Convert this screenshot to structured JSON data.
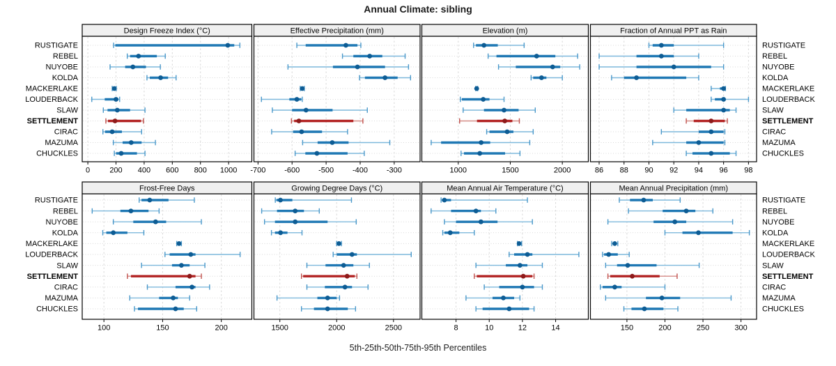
{
  "title": "Annual Climate: sibling",
  "caption": "5th-25th-50th-75th-95th Percentiles",
  "highlight_site": "SETTLEMENT",
  "sites": [
    "RUSTIGATE",
    "REBEL",
    "NUYOBE",
    "KOLDA",
    "MACKERLAKE",
    "LOUDERBACK",
    "SLAW",
    "SETTLEMENT",
    "CIRAC",
    "MAZUMA",
    "CHUCKLES"
  ],
  "colors": {
    "site_line": "#7db8dc",
    "site_cap": "#4897c9",
    "site_bar": "#1f78b4",
    "site_dot": "#0d5c94",
    "highlight_line": "#d48a86",
    "highlight_cap": "#c0504c",
    "highlight_bar": "#b22222",
    "highlight_dot": "#8e1a1a",
    "grid": "#d8d8d8",
    "strip_bg": "#f0f0f0",
    "border": "#000000",
    "text": "#000000"
  },
  "chart_data": [
    {
      "type": "dot-whisker",
      "title": "Design Freeze Index (°C)",
      "xlim": [
        -40,
        1165
      ],
      "xticks": [
        0,
        200,
        400,
        600,
        800,
        1000
      ],
      "percentile_order": [
        "5th",
        "25th",
        "50th",
        "75th",
        "95th"
      ],
      "series": [
        {
          "name": "RUSTIGATE",
          "percentiles": [
            183,
            195,
            994,
            1040,
            1080
          ]
        },
        {
          "name": "REBEL",
          "percentiles": [
            280,
            300,
            360,
            490,
            550
          ]
        },
        {
          "name": "NUYOBE",
          "percentiles": [
            158,
            265,
            320,
            413,
            515
          ]
        },
        {
          "name": "KOLDA",
          "percentiles": [
            420,
            440,
            517,
            570,
            627
          ]
        },
        {
          "name": "MACKERLAKE",
          "percentiles": [
            173,
            180,
            188,
            196,
            202
          ]
        },
        {
          "name": "LOUDERBACK",
          "percentiles": [
            28,
            120,
            200,
            217,
            226
          ]
        },
        {
          "name": "SLAW",
          "percentiles": [
            110,
            140,
            209,
            300,
            406
          ]
        },
        {
          "name": "SETTLEMENT",
          "percentiles": [
            128,
            143,
            193,
            378,
            395
          ]
        },
        {
          "name": "CIRAC",
          "percentiles": [
            107,
            122,
            173,
            242,
            382
          ]
        },
        {
          "name": "MAZUMA",
          "percentiles": [
            181,
            247,
            308,
            382,
            480
          ]
        },
        {
          "name": "CHUCKLES",
          "percentiles": [
            188,
            201,
            237,
            349,
            406
          ]
        }
      ]
    },
    {
      "type": "dot-whisker",
      "title": "Effective Precipitation (mm)",
      "xlim": [
        -712,
        -224
      ],
      "xticks": [
        -700,
        -600,
        -500,
        -400,
        -300
      ],
      "series": [
        {
          "name": "RUSTIGATE",
          "percentiles": [
            -586,
            -560,
            -442,
            -408,
            -398
          ]
        },
        {
          "name": "REBEL",
          "percentiles": [
            -452,
            -420,
            -372,
            -335,
            -268
          ]
        },
        {
          "name": "NUYOBE",
          "percentiles": [
            -612,
            -480,
            -408,
            -327,
            -258
          ]
        },
        {
          "name": "KOLDA",
          "percentiles": [
            -402,
            -386,
            -327,
            -290,
            -252
          ]
        },
        {
          "name": "MACKERLAKE",
          "percentiles": [
            -576,
            -573,
            -570,
            -567,
            -564
          ]
        },
        {
          "name": "LOUDERBACK",
          "percentiles": [
            -690,
            -608,
            -586,
            -573,
            -570
          ]
        },
        {
          "name": "SLAW",
          "percentiles": [
            -658,
            -600,
            -559,
            -481,
            -379
          ]
        },
        {
          "name": "SETTLEMENT",
          "percentiles": [
            -602,
            -594,
            -580,
            -420,
            -392
          ]
        },
        {
          "name": "CIRAC",
          "percentiles": [
            -660,
            -597,
            -572,
            -512,
            -437
          ]
        },
        {
          "name": "MAZUMA",
          "percentiles": [
            -569,
            -525,
            -482,
            -434,
            -313
          ]
        },
        {
          "name": "CHUCKLES",
          "percentiles": [
            -591,
            -561,
            -527,
            -437,
            -388
          ]
        }
      ]
    },
    {
      "type": "dot-whisker",
      "title": "Elevation (m)",
      "xlim": [
        650,
        2250
      ],
      "xticks": [
        1000,
        1500,
        2000
      ],
      "series": [
        {
          "name": "RUSTIGATE",
          "percentiles": [
            1147,
            1170,
            1247,
            1380,
            1633
          ]
        },
        {
          "name": "REBEL",
          "percentiles": [
            1287,
            1367,
            1753,
            1933,
            2147
          ]
        },
        {
          "name": "NUYOBE",
          "percentiles": [
            1387,
            1553,
            1907,
            1980,
            2167
          ]
        },
        {
          "name": "KOLDA",
          "percentiles": [
            1700,
            1720,
            1800,
            1847,
            2000
          ]
        },
        {
          "name": "MACKERLAKE",
          "percentiles": [
            1168,
            1173,
            1177,
            1182,
            1187
          ]
        },
        {
          "name": "LOUDERBACK",
          "percentiles": [
            1020,
            1035,
            1240,
            1300,
            1440
          ]
        },
        {
          "name": "SLAW",
          "percentiles": [
            1047,
            1247,
            1440,
            1580,
            1740
          ]
        },
        {
          "name": "SETTLEMENT",
          "percentiles": [
            1013,
            1180,
            1447,
            1520,
            1587
          ]
        },
        {
          "name": "CIRAC",
          "percentiles": [
            1273,
            1300,
            1470,
            1530,
            1720
          ]
        },
        {
          "name": "MAZUMA",
          "percentiles": [
            740,
            835,
            1220,
            1307,
            1687
          ]
        },
        {
          "name": "CHUCKLES",
          "percentiles": [
            1027,
            1055,
            1207,
            1450,
            1593
          ]
        }
      ]
    },
    {
      "type": "dot-whisker",
      "title": "Fraction of Annual PPT as Rain",
      "xlim": [
        85.3,
        98.65
      ],
      "xticks": [
        86,
        88,
        90,
        92,
        94,
        96,
        98
      ],
      "series": [
        {
          "name": "RUSTIGATE",
          "percentiles": [
            90,
            90.3,
            91,
            92,
            96
          ]
        },
        {
          "name": "REBEL",
          "percentiles": [
            86,
            89,
            91,
            92,
            94
          ]
        },
        {
          "name": "NUYOBE",
          "percentiles": [
            86,
            89,
            92,
            95,
            96
          ]
        },
        {
          "name": "KOLDA",
          "percentiles": [
            87,
            88,
            89,
            93,
            94
          ]
        },
        {
          "name": "MACKERLAKE",
          "percentiles": [
            95,
            95.7,
            96,
            96.08,
            96.15
          ]
        },
        {
          "name": "LOUDERBACK",
          "percentiles": [
            95,
            95.3,
            96,
            96.1,
            98
          ]
        },
        {
          "name": "SLAW",
          "percentiles": [
            92,
            93,
            96,
            96.5,
            97
          ]
        },
        {
          "name": "SETTLEMENT",
          "percentiles": [
            93,
            93.6,
            95,
            96.1,
            96.3
          ]
        },
        {
          "name": "CIRAC",
          "percentiles": [
            91,
            94,
            95,
            96,
            96.1
          ]
        },
        {
          "name": "MAZUMA",
          "percentiles": [
            90.3,
            93,
            94,
            96,
            96.1
          ]
        },
        {
          "name": "CHUCKLES",
          "percentiles": [
            93,
            93.5,
            95,
            96.5,
            97
          ]
        }
      ]
    },
    {
      "type": "dot-whisker",
      "title": "Frost-Free Days",
      "xlim": [
        81.5,
        226
      ],
      "xticks": [
        100,
        150,
        200
      ],
      "series": [
        {
          "name": "RUSTIGATE",
          "percentiles": [
            130,
            132,
            139,
            155,
            177
          ]
        },
        {
          "name": "REBEL",
          "percentiles": [
            90,
            114,
            123,
            138,
            147
          ]
        },
        {
          "name": "NUYOBE",
          "percentiles": [
            108,
            125,
            144,
            153,
            183
          ]
        },
        {
          "name": "KOLDA",
          "percentiles": [
            99,
            102,
            108,
            120,
            134
          ]
        },
        {
          "name": "MACKERLAKE",
          "percentiles": [
            162,
            163,
            164,
            165,
            166
          ]
        },
        {
          "name": "LOUDERBACK",
          "percentiles": [
            152,
            156,
            174,
            178,
            216
          ]
        },
        {
          "name": "SLAW",
          "percentiles": [
            132,
            158,
            166,
            173,
            186
          ]
        },
        {
          "name": "SETTLEMENT",
          "percentiles": [
            120,
            123,
            173,
            178,
            183
          ]
        },
        {
          "name": "CIRAC",
          "percentiles": [
            137,
            161,
            175,
            178,
            190
          ]
        },
        {
          "name": "MAZUMA",
          "percentiles": [
            122,
            147,
            159,
            163,
            173
          ]
        },
        {
          "name": "CHUCKLES",
          "percentiles": [
            126,
            129,
            161,
            168,
            179
          ]
        }
      ]
    },
    {
      "type": "dot-whisker",
      "title": "Growing Degree Days (°C)",
      "xlim": [
        1272,
        2734
      ],
      "xticks": [
        1500,
        2000,
        2500
      ],
      "series": [
        {
          "name": "RUSTIGATE",
          "percentiles": [
            1460,
            1470,
            1505,
            1610,
            2130
          ]
        },
        {
          "name": "REBEL",
          "percentiles": [
            1340,
            1475,
            1635,
            1712,
            1847
          ]
        },
        {
          "name": "NUYOBE",
          "percentiles": [
            1365,
            1457,
            1635,
            1920,
            2172
          ]
        },
        {
          "name": "KOLDA",
          "percentiles": [
            1426,
            1457,
            1506,
            1567,
            1695
          ]
        },
        {
          "name": "MACKERLAKE",
          "percentiles": [
            2000,
            2010,
            2020,
            2032,
            2042
          ]
        },
        {
          "name": "LOUDERBACK",
          "percentiles": [
            1969,
            2000,
            2135,
            2178,
            2656
          ]
        },
        {
          "name": "SLAW",
          "percentiles": [
            1738,
            1902,
            2061,
            2147,
            2288
          ]
        },
        {
          "name": "SETTLEMENT",
          "percentiles": [
            1690,
            1705,
            2092,
            2160,
            2178
          ]
        },
        {
          "name": "CIRAC",
          "percentiles": [
            1738,
            1896,
            2073,
            2135,
            2276
          ]
        },
        {
          "name": "MAZUMA",
          "percentiles": [
            1475,
            1830,
            1920,
            2000,
            2025
          ]
        },
        {
          "name": "CHUCKLES",
          "percentiles": [
            1690,
            1800,
            1920,
            2098,
            2166
          ]
        }
      ]
    },
    {
      "type": "dot-whisker",
      "title": "Mean Annual Air Temperature (°C)",
      "xlim": [
        5.94,
        15.97
      ],
      "xticks": [
        8,
        10,
        12,
        14
      ],
      "series": [
        {
          "name": "RUSTIGATE",
          "percentiles": [
            7.1,
            7.15,
            7.3,
            7.7,
            12.3
          ]
        },
        {
          "name": "REBEL",
          "percentiles": [
            6.5,
            7.7,
            9.2,
            9.5,
            10.4
          ]
        },
        {
          "name": "NUYOBE",
          "percentiles": [
            7.3,
            8.0,
            9.5,
            10.5,
            12.6
          ]
        },
        {
          "name": "KOLDA",
          "percentiles": [
            7.2,
            7.3,
            7.65,
            8.2,
            9.1
          ]
        },
        {
          "name": "MACKERLAKE",
          "percentiles": [
            11.7,
            11.75,
            11.8,
            11.87,
            11.95
          ]
        },
        {
          "name": "LOUDERBACK",
          "percentiles": [
            11.2,
            11.5,
            12.3,
            12.6,
            15.4
          ]
        },
        {
          "name": "SLAW",
          "percentiles": [
            9.2,
            11.0,
            11.85,
            12.3,
            13.2
          ]
        },
        {
          "name": "SETTLEMENT",
          "percentiles": [
            9.1,
            9.25,
            12.05,
            12.6,
            12.7
          ]
        },
        {
          "name": "CIRAC",
          "percentiles": [
            9.7,
            10.6,
            12.0,
            12.7,
            13.2
          ]
        },
        {
          "name": "MAZUMA",
          "percentiles": [
            8.6,
            10.2,
            10.85,
            11.5,
            11.85
          ]
        },
        {
          "name": "CHUCKLES",
          "percentiles": [
            9.2,
            9.6,
            11.2,
            12.4,
            12.7
          ]
        }
      ]
    },
    {
      "type": "dot-whisker",
      "title": "Mean Annual Precipitation (mm)",
      "xlim": [
        102,
        320.5
      ],
      "xticks": [
        150,
        200,
        250,
        300
      ],
      "series": [
        {
          "name": "RUSTIGATE",
          "percentiles": [
            140,
            154,
            172,
            184,
            220
          ]
        },
        {
          "name": "REBEL",
          "percentiles": [
            152,
            197,
            228,
            240,
            263
          ]
        },
        {
          "name": "NUYOBE",
          "percentiles": [
            125,
            185,
            213,
            228,
            289
          ]
        },
        {
          "name": "KOLDA",
          "percentiles": [
            200,
            223,
            244,
            289,
            311
          ]
        },
        {
          "name": "MACKERLAKE",
          "percentiles": [
            130,
            132,
            134,
            136,
            138
          ]
        },
        {
          "name": "LOUDERBACK",
          "percentiles": [
            118,
            120,
            126,
            138,
            153
          ]
        },
        {
          "name": "SLAW",
          "percentiles": [
            122,
            137,
            151,
            189,
            245
          ]
        },
        {
          "name": "SETTLEMENT",
          "percentiles": [
            125,
            128,
            157,
            193,
            216
          ]
        },
        {
          "name": "CIRAC",
          "percentiles": [
            115,
            118,
            134,
            143,
            200
          ]
        },
        {
          "name": "MAZUMA",
          "percentiles": [
            122,
            175,
            196,
            220,
            287
          ]
        },
        {
          "name": "CHUCKLES",
          "percentiles": [
            146,
            156,
            173,
            198,
            217
          ]
        }
      ]
    }
  ]
}
